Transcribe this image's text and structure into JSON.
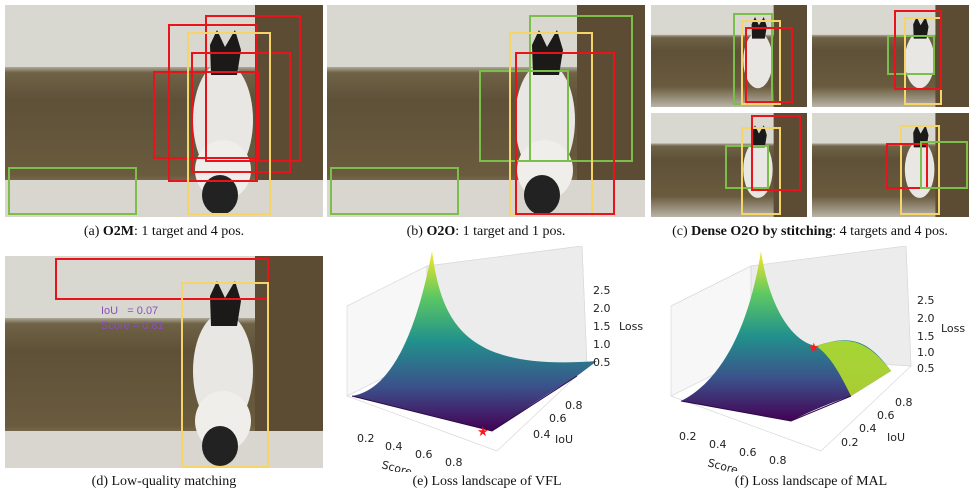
{
  "captions": {
    "a": {
      "prefix": "(a) ",
      "bold": "O2M",
      "rest": ": 1 target and 4 pos."
    },
    "b": {
      "prefix": "(b) ",
      "bold": "O2O",
      "rest": ": 1 target and 1 pos."
    },
    "c": {
      "prefix": "(c) ",
      "bold": "Dense O2O by stitching",
      "rest": ": 4 targets and 4 pos."
    },
    "d": {
      "text": "(d) Low-quality matching"
    },
    "e": {
      "text": "(e) Loss landscape of VFL"
    },
    "f": {
      "text": "(f) Loss landscape of MAL"
    }
  },
  "annotation_d": {
    "iou": "IoU   = 0.07",
    "score": "Score = 0.81"
  },
  "colors": {
    "target_box": "#f5d56a",
    "positive_box": "#e8141c",
    "negative_box": "#7bbf4a",
    "annotation_text": "#8a4fc0",
    "optimum_marker": "#ff1a1a"
  },
  "icons": [
    "dog-photo",
    "star-marker"
  ],
  "chart_data": [
    {
      "type": "surface",
      "name": "Loss landscape of VFL",
      "xlabel": "Score",
      "ylabel": "IoU",
      "zlabel": "Loss",
      "x_ticks": [
        "0.2",
        "0.4",
        "0.6",
        "0.8"
      ],
      "y_ticks": [
        "0.4",
        "0.6",
        "0.8"
      ],
      "z_ticks": [
        "0.5",
        "1.0",
        "1.5",
        "2.0",
        "2.5"
      ],
      "zlim": [
        0,
        2.8
      ],
      "colormap": "viridis",
      "marker": {
        "score": 0.9,
        "iou": 0.3,
        "loss": 0.05
      }
    },
    {
      "type": "surface",
      "name": "Loss landscape of MAL",
      "xlabel": "Score",
      "ylabel": "IoU",
      "zlabel": "Loss",
      "x_ticks": [
        "0.2",
        "0.4",
        "0.6",
        "0.8"
      ],
      "y_ticks": [
        "0.2",
        "0.4",
        "0.6",
        "0.8"
      ],
      "z_ticks": [
        "0.5",
        "1.0",
        "1.5",
        "2.0",
        "2.5"
      ],
      "zlim": [
        0,
        2.8
      ],
      "colormap": "viridis",
      "marker": {
        "score": 0.9,
        "iou": 0.3,
        "loss": 1.0
      }
    }
  ]
}
